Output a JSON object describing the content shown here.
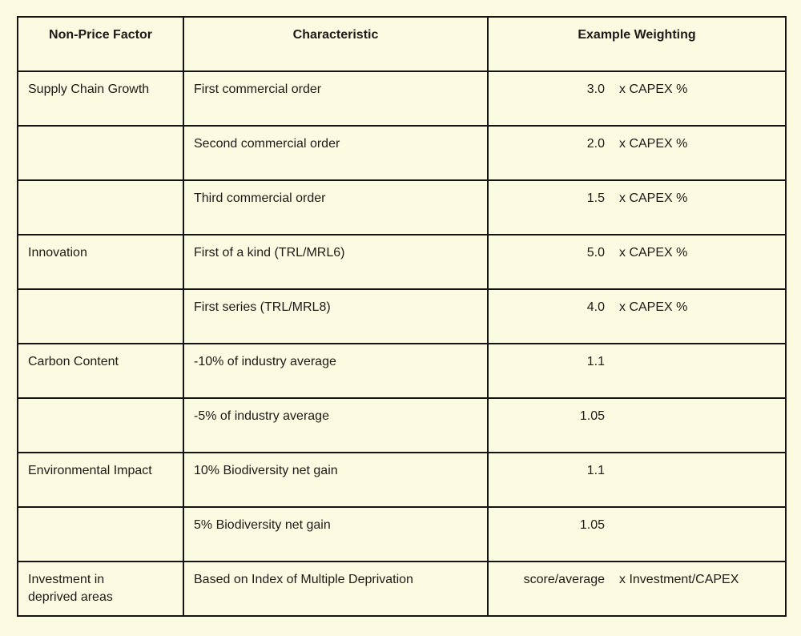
{
  "table": {
    "headers": {
      "factor": "Non-Price Factor",
      "characteristic": "Characteristic",
      "weighting": "Example Weighting"
    },
    "rows": [
      {
        "factor": "Supply Chain Growth",
        "characteristic": "First commercial order",
        "weight_value": "3.0",
        "weight_unit": "x CAPEX %"
      },
      {
        "factor": "",
        "characteristic": "Second commercial order",
        "weight_value": "2.0",
        "weight_unit": "x CAPEX %"
      },
      {
        "factor": "",
        "characteristic": "Third commercial order",
        "weight_value": "1.5",
        "weight_unit": "x CAPEX %"
      },
      {
        "factor": "Innovation",
        "characteristic": "First of a kind (TRL/MRL6)",
        "weight_value": "5.0",
        "weight_unit": "x CAPEX %"
      },
      {
        "factor": "",
        "characteristic": "First series (TRL/MRL8)",
        "weight_value": "4.0",
        "weight_unit": "x CAPEX %"
      },
      {
        "factor": "Carbon Content",
        "characteristic": "-10% of industry average",
        "weight_value": "1.1",
        "weight_unit": ""
      },
      {
        "factor": "",
        "characteristic": "-5% of industry average",
        "weight_value": "1.05",
        "weight_unit": ""
      },
      {
        "factor": "Environmental Impact",
        "characteristic": "10% Biodiversity net gain",
        "weight_value": "1.1",
        "weight_unit": ""
      },
      {
        "factor": "",
        "characteristic": "5% Biodiversity net gain",
        "weight_value": "1.05",
        "weight_unit": ""
      },
      {
        "factor": "Investment in deprived areas",
        "characteristic": "Based on Index of Multiple Deprivation",
        "weight_value": "score/average",
        "weight_unit": "x Investment/CAPEX"
      }
    ],
    "colors": {
      "background": "#fbfbe2",
      "border_thick": "#141414",
      "border_thin": "#3c3c36",
      "text": "#1d1b18"
    }
  }
}
